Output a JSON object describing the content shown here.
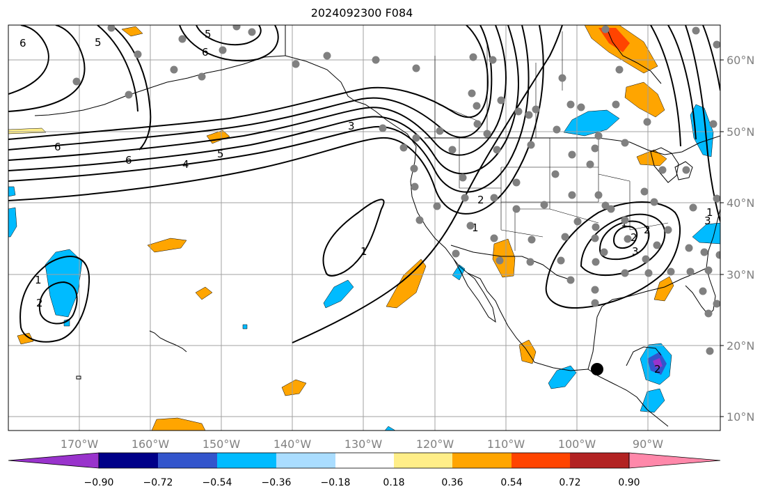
{
  "title": "2024092300 F084",
  "lat_labels": [
    "60°N",
    "50°N",
    "40°N",
    "30°N",
    "20°N",
    "10°N"
  ],
  "lon_labels": [
    "170°W",
    "160°W",
    "150°W",
    "140°W",
    "130°W",
    "120°W",
    "110°W",
    "100°W",
    "90°W"
  ],
  "contour_labels": [
    "6",
    "5",
    "6",
    "5",
    "6",
    "6",
    "5",
    "4",
    "3",
    "2",
    "1",
    "1",
    "2",
    "1",
    "2",
    "1",
    "2",
    "3",
    "3",
    "1",
    "2"
  ],
  "colorbar": {
    "tick_labels": [
      "−0.90",
      "−0.72",
      "−0.54",
      "−0.36",
      "−0.18",
      "0.18",
      "0.36",
      "0.54",
      "0.72",
      "0.90"
    ],
    "colors": [
      "#9933cc",
      "#000088",
      "#3355cc",
      "#00bbff",
      "#aaddff",
      "#ffffff",
      "#ffee88",
      "#ffa500",
      "#ff4400",
      "#b22222",
      "#ff88aa"
    ]
  },
  "colors": {
    "contour": "#000000",
    "coast": "#000000",
    "grid": "#a0a0a0",
    "station": "#808080",
    "negative_fill": "#00bbff",
    "positive_fill": "#ffa500"
  }
}
